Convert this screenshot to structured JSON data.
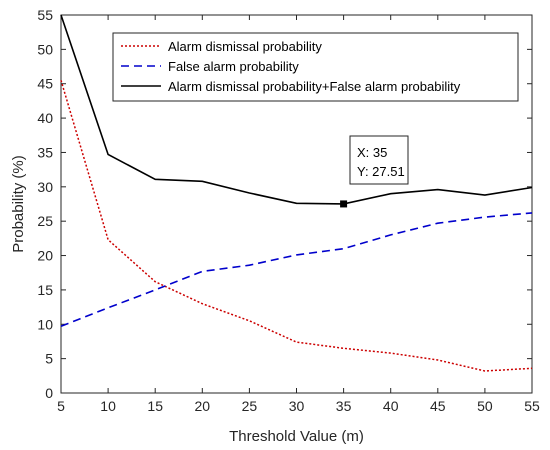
{
  "chart_data": {
    "type": "line",
    "xlabel": "Threshold Value (m)",
    "ylabel": "Probability (%)",
    "xlim": [
      5,
      55
    ],
    "ylim": [
      0,
      55
    ],
    "xticks": [
      5,
      10,
      15,
      20,
      25,
      30,
      35,
      40,
      45,
      50,
      55
    ],
    "yticks": [
      0,
      5,
      10,
      15,
      20,
      25,
      30,
      35,
      40,
      45,
      50,
      55
    ],
    "grid": false,
    "legend_position": "top-right",
    "x": [
      5,
      10,
      15,
      20,
      25,
      30,
      35,
      40,
      45,
      50,
      55
    ],
    "series": [
      {
        "name": "Alarm dismissal probability",
        "style": "dotted",
        "color": "#cc0000",
        "values": [
          45.5,
          22.3,
          16.2,
          13.0,
          10.5,
          7.4,
          6.5,
          5.8,
          4.8,
          3.2,
          3.6
        ]
      },
      {
        "name": "False alarm probability",
        "style": "dashed",
        "color": "#0000cc",
        "values": [
          9.7,
          12.4,
          15.0,
          17.7,
          18.6,
          20.1,
          21.0,
          23.0,
          24.7,
          25.6,
          26.2
        ]
      },
      {
        "name": "Alarm dismissal probability+False alarm probability",
        "style": "solid",
        "color": "#000000",
        "values": [
          55.0,
          34.7,
          31.1,
          30.8,
          29.1,
          27.6,
          27.51,
          29.0,
          29.6,
          28.8,
          29.9
        ]
      }
    ],
    "datatip": {
      "x_label": "X: 35",
      "y_label": "Y: 27.51",
      "x": 35,
      "y": 27.51
    }
  }
}
